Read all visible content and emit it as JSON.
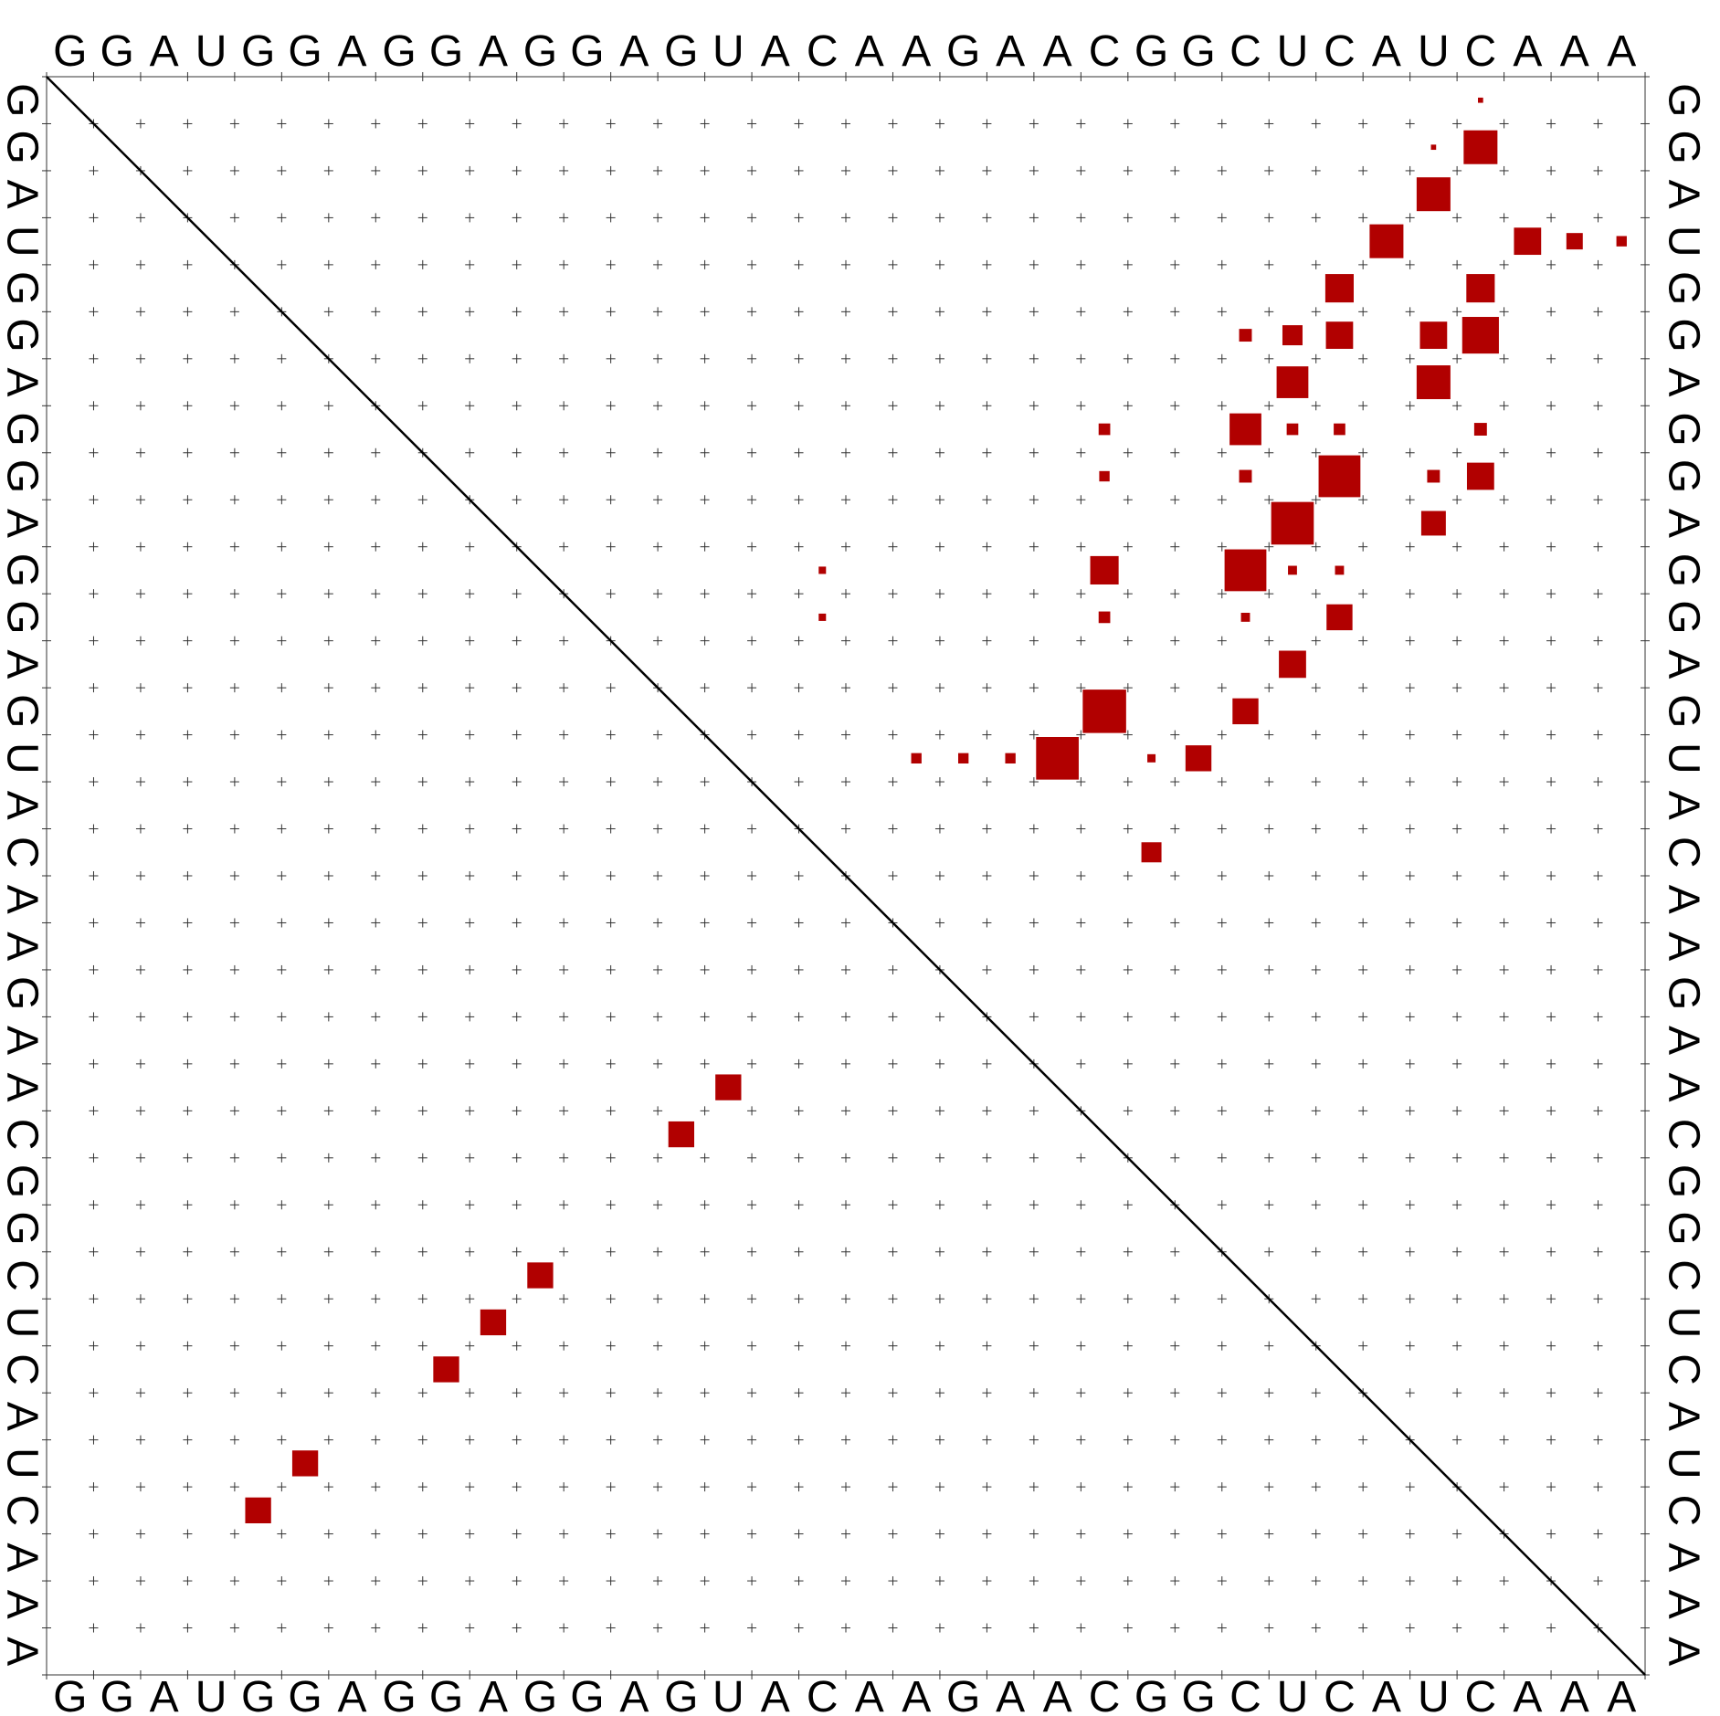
{
  "sequence": "GGAUGGAGGAGGAGUACAAGAACGGCUCAUCAAA",
  "plot": {
    "box_color": "#b10000",
    "grid_marker": "+",
    "diagonal": "i=j"
  },
  "upper_triangle_pair_probabilities": [
    {
      "i": 1,
      "j": 31,
      "p": 0.02
    },
    {
      "i": 2,
      "j": 30,
      "p": 0.02
    },
    {
      "i": 2,
      "j": 31,
      "p": 0.85
    },
    {
      "i": 3,
      "j": 30,
      "p": 0.85
    },
    {
      "i": 4,
      "j": 29,
      "p": 0.85
    },
    {
      "i": 4,
      "j": 32,
      "p": 0.55
    },
    {
      "i": 4,
      "j": 33,
      "p": 0.2
    },
    {
      "i": 4,
      "j": 34,
      "p": 0.08
    },
    {
      "i": 5,
      "j": 28,
      "p": 0.6
    },
    {
      "i": 5,
      "j": 31,
      "p": 0.6
    },
    {
      "i": 6,
      "j": 26,
      "p": 0.12
    },
    {
      "i": 6,
      "j": 27,
      "p": 0.3
    },
    {
      "i": 6,
      "j": 28,
      "p": 0.55
    },
    {
      "i": 6,
      "j": 30,
      "p": 0.55
    },
    {
      "i": 6,
      "j": 31,
      "p": 1.0
    },
    {
      "i": 7,
      "j": 27,
      "p": 0.75
    },
    {
      "i": 7,
      "j": 30,
      "p": 0.85
    },
    {
      "i": 8,
      "j": 23,
      "p": 0.1
    },
    {
      "i": 8,
      "j": 26,
      "p": 0.75
    },
    {
      "i": 8,
      "j": 27,
      "p": 0.1
    },
    {
      "i": 8,
      "j": 28,
      "p": 0.1
    },
    {
      "i": 8,
      "j": 31,
      "p": 0.12
    },
    {
      "i": 9,
      "j": 23,
      "p": 0.08
    },
    {
      "i": 9,
      "j": 26,
      "p": 0.12
    },
    {
      "i": 9,
      "j": 28,
      "p": 1.3
    },
    {
      "i": 9,
      "j": 30,
      "p": 0.12
    },
    {
      "i": 9,
      "j": 31,
      "p": 0.55
    },
    {
      "i": 10,
      "j": 27,
      "p": 1.35
    },
    {
      "i": 10,
      "j": 30,
      "p": 0.45
    },
    {
      "i": 11,
      "j": 17,
      "p": 0.04
    },
    {
      "i": 11,
      "j": 23,
      "p": 0.6
    },
    {
      "i": 11,
      "j": 26,
      "p": 1.3
    },
    {
      "i": 11,
      "j": 27,
      "p": 0.06
    },
    {
      "i": 11,
      "j": 28,
      "p": 0.06
    },
    {
      "i": 12,
      "j": 17,
      "p": 0.04
    },
    {
      "i": 12,
      "j": 23,
      "p": 0.1
    },
    {
      "i": 12,
      "j": 26,
      "p": 0.06
    },
    {
      "i": 12,
      "j": 28,
      "p": 0.5
    },
    {
      "i": 13,
      "j": 27,
      "p": 0.55
    },
    {
      "i": 14,
      "j": 23,
      "p": 1.4
    },
    {
      "i": 14,
      "j": 26,
      "p": 0.5
    },
    {
      "i": 15,
      "j": 19,
      "p": 0.08
    },
    {
      "i": 15,
      "j": 20,
      "p": 0.08
    },
    {
      "i": 15,
      "j": 21,
      "p": 0.08
    },
    {
      "i": 15,
      "j": 22,
      "p": 1.35
    },
    {
      "i": 15,
      "j": 24,
      "p": 0.05
    },
    {
      "i": 15,
      "j": 25,
      "p": 0.5
    },
    {
      "i": 17,
      "j": 24,
      "p": 0.3
    }
  ],
  "lower_triangle_mfe_pairs": [
    {
      "i": 14,
      "j": 23
    },
    {
      "i": 15,
      "j": 22
    },
    {
      "i": 9,
      "j": 28
    },
    {
      "i": 10,
      "j": 27
    },
    {
      "i": 11,
      "j": 26
    },
    {
      "i": 6,
      "j": 30
    },
    {
      "i": 5,
      "j": 31
    }
  ]
}
